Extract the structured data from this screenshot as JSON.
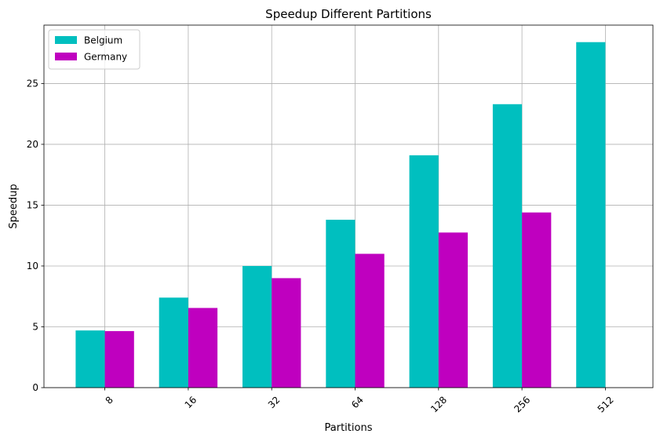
{
  "chart_data": {
    "type": "bar",
    "title": "Speedup Different Partitions",
    "xlabel": "Partitions",
    "ylabel": "Speedup",
    "categories": [
      "8",
      "16",
      "32",
      "64",
      "128",
      "256",
      "512"
    ],
    "series": [
      {
        "name": "Belgium",
        "color": "#00bfbf",
        "values": [
          4.7,
          7.4,
          10.0,
          13.8,
          19.1,
          23.3,
          28.4
        ]
      },
      {
        "name": "Germany",
        "color": "#bf00bf",
        "values": [
          4.65,
          6.55,
          9.0,
          11.0,
          12.75,
          14.4,
          null
        ]
      }
    ],
    "ylim": [
      0,
      29.8
    ],
    "yticks": [
      0,
      5,
      10,
      15,
      20,
      25
    ],
    "grid": true,
    "legend_position": "top-left",
    "xtick_rotation": 45
  }
}
